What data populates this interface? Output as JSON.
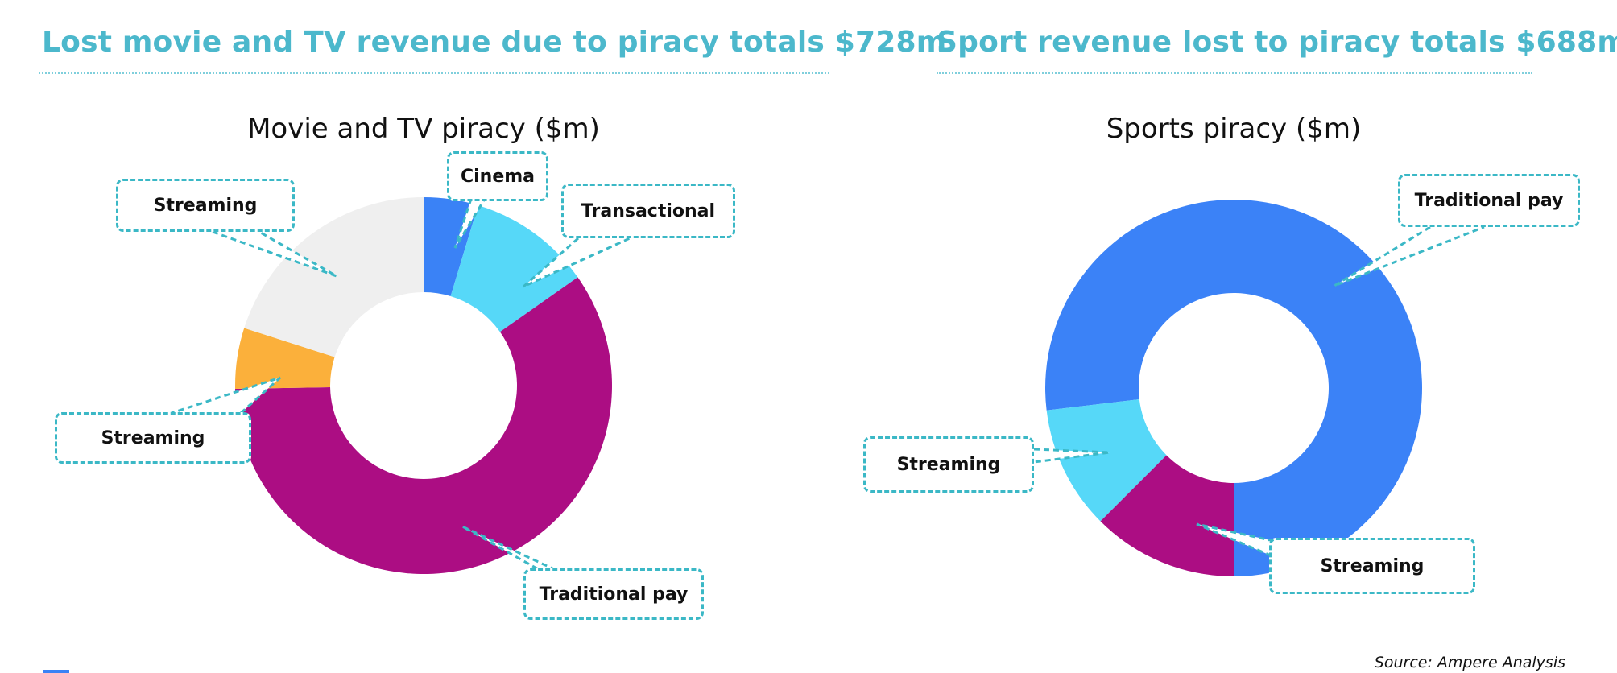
{
  "headlines": {
    "left": "Lost movie and TV revenue due to piracy totals $728m",
    "right": "Sport revenue lost to piracy totals $688m"
  },
  "source": "Source: Ampere Analysis",
  "colors": {
    "headline": "#4cb8cc",
    "callout_border": "#3bb8c6",
    "cinema": "#3a82f6",
    "transactional": "#56d8f8",
    "traditional_pay": "#ac0d83",
    "streaming_orange": "#fbb03b",
    "streaming_grey": "#efefef",
    "sports_traditional_pay": "#3b82f7",
    "sports_streaming_purple": "#ac0d83",
    "sports_streaming_cyan": "#56d8f8"
  },
  "chart_data": [
    {
      "type": "pie",
      "donut": true,
      "title": "Movie and TV piracy ($m)",
      "slices": [
        {
          "label": "Cinema",
          "value": 34,
          "color": "#3a82f6"
        },
        {
          "label": "Transactional",
          "value": 77,
          "color": "#56d8f8"
        },
        {
          "label": "Traditional pay",
          "value": 433,
          "color": "#ac0d83"
        },
        {
          "label": "Streaming",
          "value": 38,
          "color": "#fbb03b"
        },
        {
          "label": "Streaming",
          "value": 146,
          "color": "#efefef"
        }
      ]
    },
    {
      "type": "pie",
      "donut": true,
      "title": "Sports piracy ($m)",
      "slices": [
        {
          "label": "Traditional pay",
          "value": 529,
          "color": "#3b82f7"
        },
        {
          "label": "Streaming",
          "value": 73,
          "color": "#56d8f8"
        },
        {
          "label": "Streaming",
          "value": 86,
          "color": "#ac0d83"
        }
      ]
    }
  ]
}
